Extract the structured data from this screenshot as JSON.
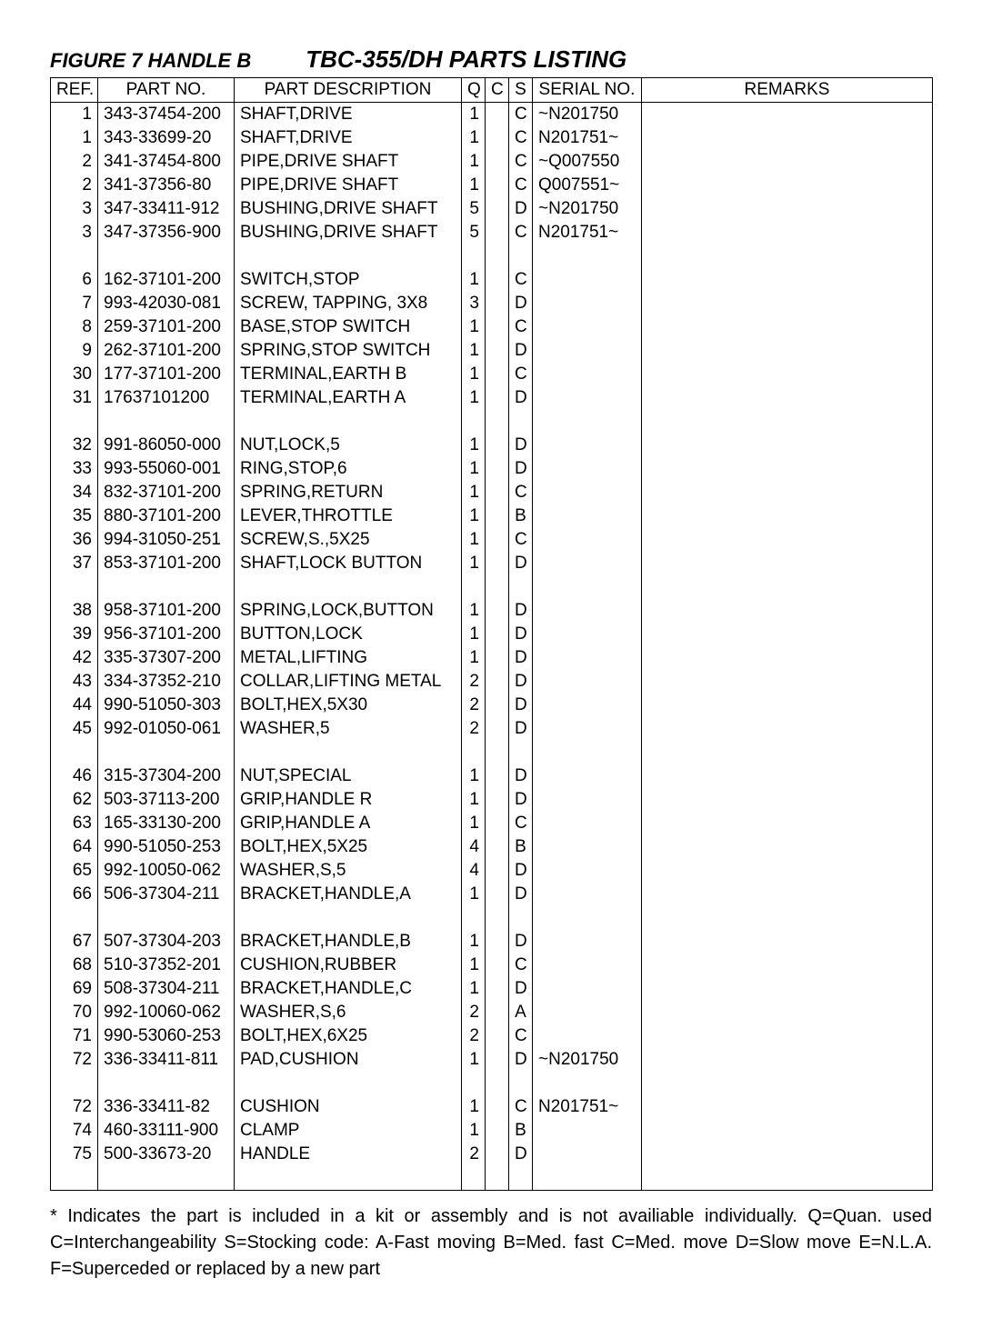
{
  "header": {
    "figure_label": "FIGURE 7  HANDLE B",
    "main_title": "TBC-355/DH  PARTS  LISTING"
  },
  "columns": {
    "ref": "REF.",
    "part_no": "PART NO.",
    "description": "PART DESCRIPTION",
    "q": "Q",
    "c": "C",
    "s": "S",
    "serial": "SERIAL NO.",
    "remarks": "REMARKS"
  },
  "rows": [
    {
      "ref": "1",
      "part": "343-37454-200",
      "desc": "SHAFT,DRIVE",
      "q": "1",
      "c": "",
      "s": "C",
      "serial": "~N201750",
      "rem": ""
    },
    {
      "ref": "1",
      "part": "343-33699-20",
      "desc": "SHAFT,DRIVE",
      "q": "1",
      "c": "",
      "s": "C",
      "serial": "N201751~",
      "rem": ""
    },
    {
      "ref": "2",
      "part": "341-37454-800",
      "desc": "PIPE,DRIVE SHAFT",
      "q": "1",
      "c": "",
      "s": "C",
      "serial": "~Q007550",
      "rem": ""
    },
    {
      "ref": "2",
      "part": "341-37356-80",
      "desc": "PIPE,DRIVE SHAFT",
      "q": "1",
      "c": "",
      "s": "C",
      "serial": "Q007551~",
      "rem": ""
    },
    {
      "ref": "3",
      "part": "347-33411-912",
      "desc": "BUSHING,DRIVE SHAFT",
      "q": "5",
      "c": "",
      "s": "D",
      "serial": "~N201750",
      "rem": ""
    },
    {
      "ref": "3",
      "part": "347-37356-900",
      "desc": "BUSHING,DRIVE SHAFT",
      "q": "5",
      "c": "",
      "s": "C",
      "serial": "N201751~",
      "rem": ""
    },
    {
      "ref": "",
      "part": "",
      "desc": "",
      "q": "",
      "c": "",
      "s": "",
      "serial": "",
      "rem": ""
    },
    {
      "ref": "6",
      "part": "162-37101-200",
      "desc": "SWITCH,STOP",
      "q": "1",
      "c": "",
      "s": "C",
      "serial": "",
      "rem": ""
    },
    {
      "ref": "7",
      "part": "993-42030-081",
      "desc": "SCREW, TAPPING, 3X8",
      "q": "3",
      "c": "",
      "s": "D",
      "serial": "",
      "rem": ""
    },
    {
      "ref": "8",
      "part": "259-37101-200",
      "desc": "BASE,STOP SWITCH",
      "q": "1",
      "c": "",
      "s": "C",
      "serial": "",
      "rem": ""
    },
    {
      "ref": "9",
      "part": "262-37101-200",
      "desc": "SPRING,STOP SWITCH",
      "q": "1",
      "c": "",
      "s": "D",
      "serial": "",
      "rem": ""
    },
    {
      "ref": "30",
      "part": "177-37101-200",
      "desc": "TERMINAL,EARTH B",
      "q": "1",
      "c": "",
      "s": "C",
      "serial": "",
      "rem": ""
    },
    {
      "ref": "31",
      "part": "17637101200",
      "desc": "TERMINAL,EARTH A",
      "q": "1",
      "c": "",
      "s": "D",
      "serial": "",
      "rem": ""
    },
    {
      "ref": "",
      "part": "",
      "desc": "",
      "q": "",
      "c": "",
      "s": "",
      "serial": "",
      "rem": ""
    },
    {
      "ref": "32",
      "part": "991-86050-000",
      "desc": "NUT,LOCK,5",
      "q": "1",
      "c": "",
      "s": "D",
      "serial": "",
      "rem": ""
    },
    {
      "ref": "33",
      "part": "993-55060-001",
      "desc": "RING,STOP,6",
      "q": "1",
      "c": "",
      "s": "D",
      "serial": "",
      "rem": ""
    },
    {
      "ref": "34",
      "part": "832-37101-200",
      "desc": "SPRING,RETURN",
      "q": "1",
      "c": "",
      "s": "C",
      "serial": "",
      "rem": ""
    },
    {
      "ref": "35",
      "part": "880-37101-200",
      "desc": "LEVER,THROTTLE",
      "q": "1",
      "c": "",
      "s": "B",
      "serial": "",
      "rem": ""
    },
    {
      "ref": "36",
      "part": "994-31050-251",
      "desc": "SCREW,S.,5X25",
      "q": "1",
      "c": "",
      "s": "C",
      "serial": "",
      "rem": ""
    },
    {
      "ref": "37",
      "part": "853-37101-200",
      "desc": "SHAFT,LOCK BUTTON",
      "q": "1",
      "c": "",
      "s": "D",
      "serial": "",
      "rem": ""
    },
    {
      "ref": "",
      "part": "",
      "desc": "",
      "q": "",
      "c": "",
      "s": "",
      "serial": "",
      "rem": ""
    },
    {
      "ref": "38",
      "part": "958-37101-200",
      "desc": "SPRING,LOCK,BUTTON",
      "q": "1",
      "c": "",
      "s": "D",
      "serial": "",
      "rem": ""
    },
    {
      "ref": "39",
      "part": "956-37101-200",
      "desc": "BUTTON,LOCK",
      "q": "1",
      "c": "",
      "s": "D",
      "serial": "",
      "rem": ""
    },
    {
      "ref": "42",
      "part": "335-37307-200",
      "desc": "METAL,LIFTING",
      "q": "1",
      "c": "",
      "s": "D",
      "serial": "",
      "rem": ""
    },
    {
      "ref": "43",
      "part": "334-37352-210",
      "desc": "COLLAR,LIFTING METAL",
      "q": "2",
      "c": "",
      "s": "D",
      "serial": "",
      "rem": ""
    },
    {
      "ref": "44",
      "part": "990-51050-303",
      "desc": "BOLT,HEX,5X30",
      "q": "2",
      "c": "",
      "s": "D",
      "serial": "",
      "rem": ""
    },
    {
      "ref": "45",
      "part": "992-01050-061",
      "desc": "WASHER,5",
      "q": "2",
      "c": "",
      "s": "D",
      "serial": "",
      "rem": ""
    },
    {
      "ref": "",
      "part": "",
      "desc": "",
      "q": "",
      "c": "",
      "s": "",
      "serial": "",
      "rem": ""
    },
    {
      "ref": "46",
      "part": "315-37304-200",
      "desc": "NUT,SPECIAL",
      "q": "1",
      "c": "",
      "s": "D",
      "serial": "",
      "rem": ""
    },
    {
      "ref": "62",
      "part": "503-37113-200",
      "desc": "GRIP,HANDLE R",
      "q": "1",
      "c": "",
      "s": "D",
      "serial": "",
      "rem": ""
    },
    {
      "ref": "63",
      "part": "165-33130-200",
      "desc": "GRIP,HANDLE A",
      "q": "1",
      "c": "",
      "s": "C",
      "serial": "",
      "rem": ""
    },
    {
      "ref": "64",
      "part": "990-51050-253",
      "desc": "BOLT,HEX,5X25",
      "q": "4",
      "c": "",
      "s": "B",
      "serial": "",
      "rem": ""
    },
    {
      "ref": "65",
      "part": "992-10050-062",
      "desc": "WASHER,S,5",
      "q": "4",
      "c": "",
      "s": "D",
      "serial": "",
      "rem": ""
    },
    {
      "ref": "66",
      "part": "506-37304-211",
      "desc": "BRACKET,HANDLE,A",
      "q": "1",
      "c": "",
      "s": "D",
      "serial": "",
      "rem": ""
    },
    {
      "ref": "",
      "part": "",
      "desc": "",
      "q": "",
      "c": "",
      "s": "",
      "serial": "",
      "rem": ""
    },
    {
      "ref": "67",
      "part": "507-37304-203",
      "desc": "BRACKET,HANDLE,B",
      "q": "1",
      "c": "",
      "s": "D",
      "serial": "",
      "rem": ""
    },
    {
      "ref": "68",
      "part": "510-37352-201",
      "desc": "CUSHION,RUBBER",
      "q": "1",
      "c": "",
      "s": "C",
      "serial": "",
      "rem": ""
    },
    {
      "ref": "69",
      "part": "508-37304-211",
      "desc": "BRACKET,HANDLE,C",
      "q": "1",
      "c": "",
      "s": "D",
      "serial": "",
      "rem": ""
    },
    {
      "ref": "70",
      "part": "992-10060-062",
      "desc": "WASHER,S,6",
      "q": "2",
      "c": "",
      "s": "A",
      "serial": "",
      "rem": ""
    },
    {
      "ref": "71",
      "part": "990-53060-253",
      "desc": "BOLT,HEX,6X25",
      "q": "2",
      "c": "",
      "s": "C",
      "serial": "",
      "rem": ""
    },
    {
      "ref": "72",
      "part": "336-33411-811",
      "desc": "PAD,CUSHION",
      "q": "1",
      "c": "",
      "s": "D",
      "serial": "~N201750",
      "rem": ""
    },
    {
      "ref": "",
      "part": "",
      "desc": "",
      "q": "",
      "c": "",
      "s": "",
      "serial": "",
      "rem": ""
    },
    {
      "ref": "72",
      "part": "336-33411-82",
      "desc": "CUSHION",
      "q": "1",
      "c": "",
      "s": "C",
      "serial": "N201751~",
      "rem": ""
    },
    {
      "ref": "74",
      "part": "460-33111-900",
      "desc": "CLAMP",
      "q": "1",
      "c": "",
      "s": "B",
      "serial": "",
      "rem": ""
    },
    {
      "ref": "75",
      "part": "500-33673-20",
      "desc": "HANDLE",
      "q": "2",
      "c": "",
      "s": "D",
      "serial": "",
      "rem": ""
    },
    {
      "ref": "",
      "part": "",
      "desc": "",
      "q": "",
      "c": "",
      "s": "",
      "serial": "",
      "rem": ""
    }
  ],
  "footnote": "* Indicates the part is included in a kit or assembly and is not availiable individually. Q=Quan. used C=Interchangeability S=Stocking code: A-Fast moving B=Med. fast C=Med. move D=Slow move E=N.L.A. F=Superceded or replaced by a new part"
}
